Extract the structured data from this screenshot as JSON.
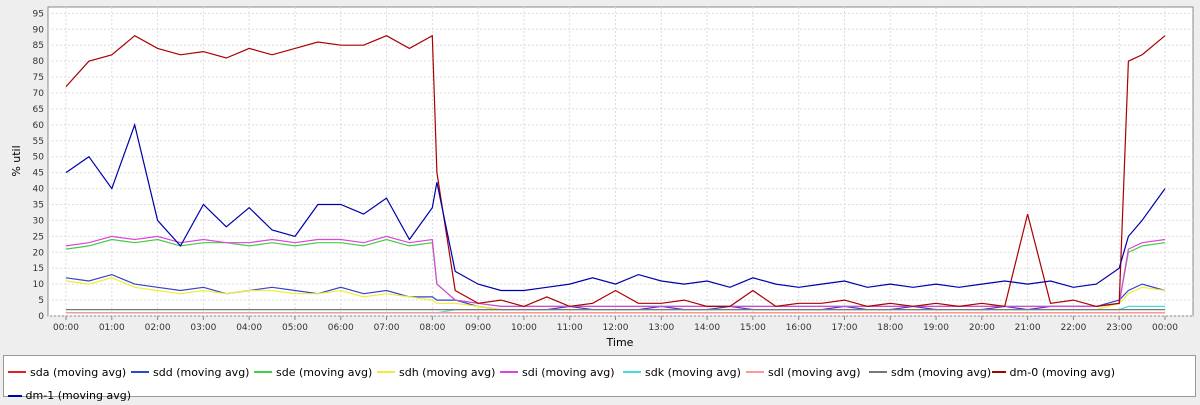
{
  "chart_data": {
    "type": "line",
    "title": "",
    "xlabel": "Time",
    "ylabel": "% util",
    "ylim": [
      0,
      97
    ],
    "yticks": [
      "0",
      "5",
      "10",
      "15",
      "20",
      "25",
      "30",
      "35",
      "40",
      "45",
      "50",
      "55",
      "60",
      "65",
      "70",
      "75",
      "80",
      "85",
      "90",
      "95"
    ],
    "xticks": [
      "00:00",
      "01:00",
      "02:00",
      "03:00",
      "04:00",
      "05:00",
      "06:00",
      "07:00",
      "08:00",
      "09:00",
      "10:00",
      "11:00",
      "12:00",
      "13:00",
      "14:00",
      "15:00",
      "16:00",
      "17:00",
      "18:00",
      "19:00",
      "20:00",
      "21:00",
      "22:00",
      "23:00",
      "00:00"
    ],
    "grid": true,
    "legend_position": "bottom",
    "x": [
      0,
      0.5,
      1,
      1.5,
      2,
      2.5,
      3,
      3.5,
      4,
      4.5,
      5,
      5.5,
      6,
      6.5,
      7,
      7.5,
      8,
      8.1,
      8.5,
      9,
      9.5,
      10,
      10.5,
      11,
      11.5,
      12,
      12.5,
      13,
      13.5,
      14,
      14.5,
      15,
      15.5,
      16,
      16.5,
      17,
      17.5,
      18,
      18.5,
      19,
      19.5,
      20,
      20.5,
      21,
      21.5,
      22,
      22.5,
      23,
      23.2,
      23.5,
      24
    ],
    "series": [
      {
        "name": "sda (moving avg)",
        "color": "#dd2222",
        "values": [
          1,
          1,
          1,
          1,
          1,
          1,
          1,
          1,
          1,
          1,
          1,
          1,
          1,
          1,
          1,
          1,
          1,
          1,
          1,
          1,
          1,
          1,
          1,
          1,
          1,
          1,
          1,
          1,
          1,
          1,
          1,
          1,
          1,
          1,
          1,
          1,
          1,
          1,
          1,
          1,
          1,
          1,
          1,
          1,
          1,
          1,
          1,
          1,
          1,
          1,
          1
        ]
      },
      {
        "name": "sdd (moving avg)",
        "color": "#3344cc",
        "values": [
          12,
          11,
          13,
          10,
          9,
          8,
          9,
          7,
          8,
          9,
          8,
          7,
          9,
          7,
          8,
          6,
          6,
          5,
          5,
          3,
          2,
          2,
          2,
          3,
          2,
          2,
          2,
          3,
          2,
          2,
          3,
          2,
          2,
          2,
          2,
          3,
          2,
          2,
          3,
          2,
          2,
          2,
          3,
          2,
          3,
          3,
          3,
          5,
          8,
          10,
          8
        ]
      },
      {
        "name": "sde (moving avg)",
        "color": "#44cc44",
        "values": [
          21,
          22,
          24,
          23,
          24,
          22,
          23,
          23,
          22,
          23,
          22,
          23,
          23,
          22,
          24,
          22,
          23,
          10,
          5,
          4,
          3,
          3,
          3,
          3,
          3,
          3,
          3,
          3,
          3,
          3,
          3,
          3,
          3,
          3,
          3,
          3,
          3,
          3,
          3,
          3,
          3,
          3,
          3,
          3,
          3,
          3,
          3,
          4,
          20,
          22,
          23
        ]
      },
      {
        "name": "sdh (moving avg)",
        "color": "#eeee33",
        "values": [
          11,
          10,
          12,
          9,
          8,
          7,
          8,
          7,
          8,
          8,
          7,
          7,
          8,
          6,
          7,
          6,
          5,
          4,
          4,
          3,
          2,
          2,
          2,
          2,
          2,
          2,
          2,
          2,
          2,
          2,
          2,
          2,
          2,
          2,
          2,
          2,
          2,
          2,
          2,
          2,
          2,
          2,
          2,
          2,
          2,
          2,
          2,
          4,
          7,
          9,
          8
        ]
      },
      {
        "name": "sdi (moving avg)",
        "color": "#dd44dd",
        "values": [
          22,
          23,
          25,
          24,
          25,
          23,
          24,
          23,
          23,
          24,
          23,
          24,
          24,
          23,
          25,
          23,
          24,
          10,
          5,
          4,
          3,
          3,
          3,
          3,
          3,
          3,
          3,
          3,
          3,
          3,
          3,
          3,
          3,
          3,
          3,
          3,
          3,
          3,
          3,
          3,
          3,
          3,
          3,
          3,
          3,
          3,
          3,
          4,
          21,
          23,
          24
        ]
      },
      {
        "name": "sdk (moving avg)",
        "color": "#44dddd",
        "values": [
          1,
          1,
          1,
          1,
          1,
          1,
          1,
          1,
          1,
          1,
          1,
          1,
          1,
          1,
          1,
          1,
          1,
          1,
          2,
          2,
          2,
          2,
          2,
          2,
          2,
          2,
          2,
          2,
          2,
          2,
          2,
          2,
          2,
          2,
          2,
          2,
          2,
          2,
          2,
          2,
          2,
          2,
          2,
          2,
          2,
          2,
          2,
          2,
          3,
          3,
          3
        ]
      },
      {
        "name": "sdl (moving avg)",
        "color": "#ff9999",
        "values": [
          1,
          1,
          1,
          1,
          1,
          1,
          1,
          1,
          1,
          1,
          1,
          1,
          1,
          1,
          1,
          1,
          1,
          1,
          1,
          1,
          1,
          1,
          1,
          1,
          1,
          1,
          1,
          1,
          1,
          1,
          1,
          1,
          1,
          1,
          1,
          1,
          1,
          1,
          1,
          1,
          1,
          1,
          1,
          1,
          1,
          1,
          1,
          1,
          1,
          1,
          1
        ]
      },
      {
        "name": "sdm (moving avg)",
        "color": "#777777",
        "values": [
          2,
          2,
          2,
          2,
          2,
          2,
          2,
          2,
          2,
          2,
          2,
          2,
          2,
          2,
          2,
          2,
          2,
          2,
          2,
          2,
          2,
          2,
          2,
          2,
          2,
          2,
          2,
          2,
          2,
          2,
          2,
          2,
          2,
          2,
          2,
          2,
          2,
          2,
          2,
          2,
          2,
          2,
          2,
          2,
          2,
          2,
          2,
          2,
          2,
          2,
          2
        ]
      },
      {
        "name": "dm-0 (moving avg)",
        "color": "#aa0000",
        "values": [
          72,
          80,
          82,
          88,
          84,
          82,
          83,
          81,
          84,
          82,
          84,
          86,
          85,
          85,
          88,
          84,
          88,
          45,
          8,
          4,
          5,
          3,
          6,
          3,
          4,
          8,
          4,
          4,
          5,
          3,
          3,
          8,
          3,
          4,
          4,
          5,
          3,
          4,
          3,
          4,
          3,
          4,
          3,
          32,
          4,
          5,
          3,
          4,
          80,
          82,
          88
        ]
      },
      {
        "name": "dm-1 (moving avg)",
        "color": "#0000aa",
        "values": [
          45,
          50,
          40,
          60,
          30,
          22,
          35,
          28,
          34,
          27,
          25,
          35,
          35,
          32,
          37,
          24,
          34,
          42,
          14,
          10,
          8,
          8,
          9,
          10,
          12,
          10,
          13,
          11,
          10,
          11,
          9,
          12,
          10,
          9,
          10,
          11,
          9,
          10,
          9,
          10,
          9,
          10,
          11,
          10,
          11,
          9,
          10,
          15,
          25,
          30,
          40
        ]
      }
    ]
  }
}
